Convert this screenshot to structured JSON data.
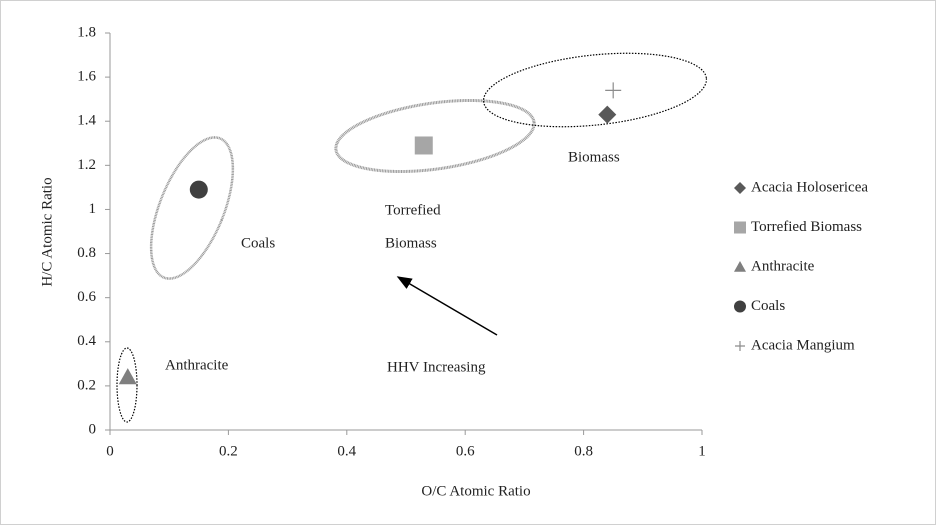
{
  "chart_data": {
    "type": "scatter",
    "x_label": "O/C Atomic Ratio",
    "y_label": "H/C  Atomic Ratio",
    "xlim": [
      0,
      1
    ],
    "xticks": [
      0,
      0.2,
      0.4,
      0.6,
      0.8,
      1
    ],
    "ylim": [
      0,
      1.8
    ],
    "yticks": [
      0,
      0.2,
      0.4,
      0.6,
      0.8,
      1,
      1.2,
      1.4,
      1.6,
      1.8
    ],
    "grid": false,
    "legend": "right",
    "series": [
      {
        "name": "Acacia Holosericea",
        "color": "#595959",
        "marker": "diamond",
        "x": [
          0.84
        ],
        "values": [
          1.43
        ]
      },
      {
        "name": "Torrefied Biomass",
        "color": "#a6a6a6",
        "marker": "square",
        "x": [
          0.53
        ],
        "values": [
          1.29
        ]
      },
      {
        "name": "Anthracite",
        "color": "#7f7f7f",
        "marker": "triangle",
        "x": [
          0.03
        ],
        "values": [
          0.24
        ]
      },
      {
        "name": "Coals",
        "color": "#404040",
        "marker": "circle",
        "x": [
          0.15
        ],
        "values": [
          1.09
        ]
      },
      {
        "name": "Acacia Mangium",
        "color": "#8c8c8c",
        "marker": "plus",
        "x": [
          0.85
        ],
        "values": [
          1.54
        ]
      }
    ],
    "annotations": [
      "Biomass",
      "Torrefied",
      "Biomass",
      "Coals",
      "Anthracite",
      "HHV Increasing"
    ]
  }
}
